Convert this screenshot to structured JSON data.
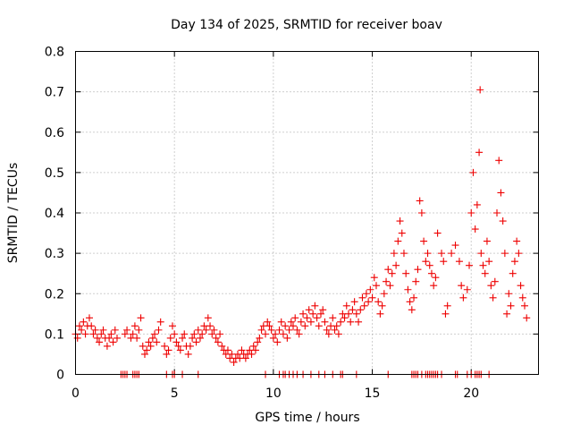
{
  "chart_data": {
    "type": "scatter",
    "title": "Day 134 of 2025, SRMTID for receiver boav",
    "xlabel": "GPS time / hours",
    "ylabel": "SRMTID / TECUs",
    "xlim": [
      0,
      23.4
    ],
    "ylim": [
      0,
      0.8
    ],
    "xticks": [
      0,
      5,
      10,
      15,
      20
    ],
    "yticks": [
      0,
      0.1,
      0.2,
      0.3,
      0.4,
      0.5,
      0.6,
      0.7,
      0.8
    ],
    "xtick_labels": [
      "0",
      "5",
      "10",
      "15",
      "20"
    ],
    "ytick_labels": [
      "0",
      "0.1",
      "0.2",
      "0.3",
      "0.4",
      "0.5",
      "0.6",
      "0.7",
      "0.8"
    ],
    "grid": true,
    "marker": "plus",
    "color": "#ee0000",
    "series": [
      {
        "name": "SRMTID",
        "points": [
          [
            0.0,
            0.1
          ],
          [
            0.1,
            0.09
          ],
          [
            0.2,
            0.12
          ],
          [
            0.3,
            0.11
          ],
          [
            0.4,
            0.13
          ],
          [
            0.5,
            0.1
          ],
          [
            0.6,
            0.12
          ],
          [
            0.7,
            0.14
          ],
          [
            0.8,
            0.12
          ],
          [
            0.9,
            0.1
          ],
          [
            1.0,
            0.11
          ],
          [
            1.1,
            0.09
          ],
          [
            1.2,
            0.08
          ],
          [
            1.3,
            0.1
          ],
          [
            1.4,
            0.11
          ],
          [
            1.5,
            0.09
          ],
          [
            1.6,
            0.07
          ],
          [
            1.7,
            0.09
          ],
          [
            1.8,
            0.1
          ],
          [
            1.9,
            0.08
          ],
          [
            2.0,
            0.11
          ],
          [
            2.1,
            0.09
          ],
          [
            2.5,
            0.1
          ],
          [
            2.6,
            0.11
          ],
          [
            2.8,
            0.09
          ],
          [
            2.9,
            0.1
          ],
          [
            3.0,
            0.12
          ],
          [
            3.1,
            0.09
          ],
          [
            3.2,
            0.11
          ],
          [
            3.3,
            0.14
          ],
          [
            3.4,
            0.07
          ],
          [
            3.5,
            0.05
          ],
          [
            3.6,
            0.06
          ],
          [
            3.7,
            0.08
          ],
          [
            3.8,
            0.07
          ],
          [
            3.9,
            0.09
          ],
          [
            4.0,
            0.1
          ],
          [
            4.1,
            0.08
          ],
          [
            4.2,
            0.11
          ],
          [
            4.3,
            0.13
          ],
          [
            4.5,
            0.07
          ],
          [
            4.6,
            0.05
          ],
          [
            4.7,
            0.06
          ],
          [
            4.8,
            0.09
          ],
          [
            4.9,
            0.12
          ],
          [
            5.0,
            0.1
          ],
          [
            5.1,
            0.08
          ],
          [
            5.2,
            0.07
          ],
          [
            5.3,
            0.06
          ],
          [
            5.4,
            0.09
          ],
          [
            5.5,
            0.1
          ],
          [
            5.6,
            0.07
          ],
          [
            5.7,
            0.05
          ],
          [
            5.8,
            0.07
          ],
          [
            5.9,
            0.09
          ],
          [
            6.0,
            0.1
          ],
          [
            6.1,
            0.08
          ],
          [
            6.2,
            0.11
          ],
          [
            6.3,
            0.09
          ],
          [
            6.4,
            0.1
          ],
          [
            6.5,
            0.12
          ],
          [
            6.6,
            0.11
          ],
          [
            6.7,
            0.14
          ],
          [
            6.8,
            0.12
          ],
          [
            6.9,
            0.1
          ],
          [
            7.0,
            0.11
          ],
          [
            7.1,
            0.09
          ],
          [
            7.2,
            0.08
          ],
          [
            7.3,
            0.1
          ],
          [
            7.4,
            0.07
          ],
          [
            7.5,
            0.06
          ],
          [
            7.6,
            0.05
          ],
          [
            7.7,
            0.06
          ],
          [
            7.8,
            0.04
          ],
          [
            7.9,
            0.05
          ],
          [
            8.0,
            0.03
          ],
          [
            8.1,
            0.04
          ],
          [
            8.2,
            0.05
          ],
          [
            8.3,
            0.04
          ],
          [
            8.4,
            0.06
          ],
          [
            8.5,
            0.05
          ],
          [
            8.6,
            0.04
          ],
          [
            8.7,
            0.05
          ],
          [
            8.8,
            0.06
          ],
          [
            8.9,
            0.05
          ],
          [
            9.0,
            0.07
          ],
          [
            9.1,
            0.06
          ],
          [
            9.2,
            0.08
          ],
          [
            9.3,
            0.09
          ],
          [
            9.4,
            0.11
          ],
          [
            9.5,
            0.12
          ],
          [
            9.6,
            0.1
          ],
          [
            9.7,
            0.13
          ],
          [
            9.8,
            0.12
          ],
          [
            9.9,
            0.11
          ],
          [
            10.0,
            0.09
          ],
          [
            10.1,
            0.1
          ],
          [
            10.2,
            0.08
          ],
          [
            10.3,
            0.11
          ],
          [
            10.4,
            0.13
          ],
          [
            10.5,
            0.1
          ],
          [
            10.6,
            0.12
          ],
          [
            10.7,
            0.09
          ],
          [
            10.8,
            0.11
          ],
          [
            10.9,
            0.13
          ],
          [
            11.0,
            0.12
          ],
          [
            11.1,
            0.14
          ],
          [
            11.2,
            0.11
          ],
          [
            11.3,
            0.1
          ],
          [
            11.4,
            0.13
          ],
          [
            11.5,
            0.15
          ],
          [
            11.6,
            0.12
          ],
          [
            11.7,
            0.14
          ],
          [
            11.8,
            0.16
          ],
          [
            11.9,
            0.13
          ],
          [
            12.0,
            0.15
          ],
          [
            12.1,
            0.17
          ],
          [
            12.2,
            0.14
          ],
          [
            12.3,
            0.12
          ],
          [
            12.4,
            0.15
          ],
          [
            12.5,
            0.16
          ],
          [
            12.6,
            0.13
          ],
          [
            12.7,
            0.11
          ],
          [
            12.8,
            0.1
          ],
          [
            12.9,
            0.12
          ],
          [
            13.0,
            0.14
          ],
          [
            13.1,
            0.11
          ],
          [
            13.2,
            0.12
          ],
          [
            13.3,
            0.1
          ],
          [
            13.4,
            0.13
          ],
          [
            13.5,
            0.15
          ],
          [
            13.6,
            0.14
          ],
          [
            13.7,
            0.17
          ],
          [
            13.8,
            0.15
          ],
          [
            13.9,
            0.13
          ],
          [
            14.0,
            0.16
          ],
          [
            14.1,
            0.18
          ],
          [
            14.2,
            0.15
          ],
          [
            14.3,
            0.13
          ],
          [
            14.4,
            0.16
          ],
          [
            14.5,
            0.19
          ],
          [
            14.6,
            0.17
          ],
          [
            14.7,
            0.2
          ],
          [
            14.8,
            0.18
          ],
          [
            14.9,
            0.21
          ],
          [
            15.0,
            0.19
          ],
          [
            15.1,
            0.24
          ],
          [
            15.2,
            0.22
          ],
          [
            15.3,
            0.18
          ],
          [
            15.4,
            0.15
          ],
          [
            15.5,
            0.17
          ],
          [
            15.6,
            0.2
          ],
          [
            15.7,
            0.23
          ],
          [
            15.8,
            0.26
          ],
          [
            15.9,
            0.22
          ],
          [
            16.0,
            0.25
          ],
          [
            16.1,
            0.3
          ],
          [
            16.2,
            0.27
          ],
          [
            16.3,
            0.33
          ],
          [
            16.4,
            0.38
          ],
          [
            16.5,
            0.35
          ],
          [
            16.6,
            0.3
          ],
          [
            16.7,
            0.25
          ],
          [
            16.8,
            0.21
          ],
          [
            16.9,
            0.18
          ],
          [
            17.0,
            0.16
          ],
          [
            17.1,
            0.19
          ],
          [
            17.2,
            0.23
          ],
          [
            17.3,
            0.26
          ],
          [
            17.4,
            0.43
          ],
          [
            17.5,
            0.4
          ],
          [
            17.6,
            0.33
          ],
          [
            17.7,
            0.28
          ],
          [
            17.8,
            0.3
          ],
          [
            17.9,
            0.27
          ],
          [
            18.0,
            0.25
          ],
          [
            18.1,
            0.22
          ],
          [
            18.2,
            0.24
          ],
          [
            18.3,
            0.35
          ],
          [
            18.5,
            0.3
          ],
          [
            18.6,
            0.28
          ],
          [
            18.7,
            0.15
          ],
          [
            18.8,
            0.17
          ],
          [
            19.0,
            0.3
          ],
          [
            19.2,
            0.32
          ],
          [
            19.4,
            0.28
          ],
          [
            19.5,
            0.22
          ],
          [
            19.6,
            0.19
          ],
          [
            19.8,
            0.21
          ],
          [
            19.9,
            0.27
          ],
          [
            20.0,
            0.4
          ],
          [
            20.1,
            0.5
          ],
          [
            20.2,
            0.36
          ],
          [
            20.3,
            0.42
          ],
          [
            20.4,
            0.55
          ],
          [
            20.45,
            0.705
          ],
          [
            20.5,
            0.3
          ],
          [
            20.6,
            0.27
          ],
          [
            20.7,
            0.25
          ],
          [
            20.8,
            0.33
          ],
          [
            20.9,
            0.28
          ],
          [
            21.0,
            0.22
          ],
          [
            21.1,
            0.19
          ],
          [
            21.2,
            0.23
          ],
          [
            21.3,
            0.4
          ],
          [
            21.4,
            0.53
          ],
          [
            21.5,
            0.45
          ],
          [
            21.6,
            0.38
          ],
          [
            21.7,
            0.3
          ],
          [
            21.8,
            0.15
          ],
          [
            21.9,
            0.2
          ],
          [
            22.0,
            0.17
          ],
          [
            22.1,
            0.25
          ],
          [
            22.2,
            0.28
          ],
          [
            22.3,
            0.33
          ],
          [
            22.4,
            0.3
          ],
          [
            22.5,
            0.22
          ],
          [
            22.6,
            0.19
          ],
          [
            22.7,
            0.17
          ],
          [
            22.8,
            0.14
          ]
        ],
        "zero_points": [
          2.3,
          2.4,
          2.5,
          2.6,
          2.9,
          3.0,
          3.1,
          3.2,
          4.6,
          4.9,
          5.0,
          5.4,
          6.2,
          9.6,
          10.3,
          10.5,
          10.6,
          10.8,
          11.0,
          11.2,
          11.5,
          11.9,
          12.3,
          12.6,
          13.0,
          13.4,
          13.5,
          14.2,
          15.8,
          17.0,
          17.1,
          17.2,
          17.3,
          17.5,
          17.7,
          17.8,
          17.9,
          18.0,
          18.1,
          18.2,
          18.3,
          18.5,
          19.2,
          19.3,
          19.8,
          20.0,
          20.2,
          20.3,
          20.4,
          20.5,
          20.9
        ]
      }
    ]
  }
}
